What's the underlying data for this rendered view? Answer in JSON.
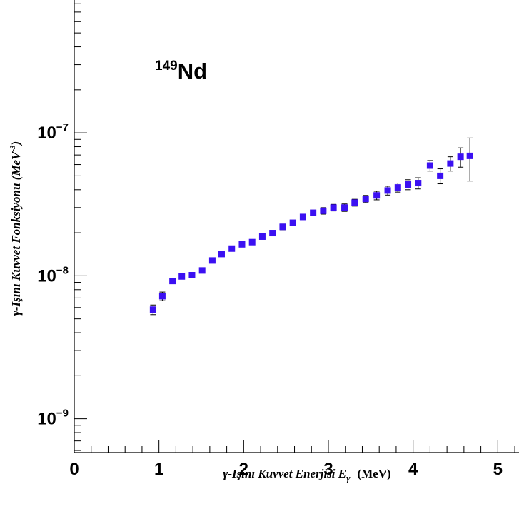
{
  "chart_data": {
    "type": "scatter",
    "xlabel_main": "γ-Işını Kuvvet Enerjisi E",
    "xlabel_sub": "γ",
    "xlabel_unit": "(MeV)",
    "ylabel": "γ-Işını Kuvvet Fonksiyonu (MeV",
    "ylabel_sup": "-3",
    "ylabel_close": ")",
    "annotation_mass": "149",
    "annotation_element": "Nd",
    "xlim": [
      0,
      5.25
    ],
    "ylim": [
      5.8e-10,
      8.5e-07
    ],
    "yscale": "log",
    "x_ticks": [
      "0",
      "1",
      "2",
      "3",
      "4",
      "5"
    ],
    "y_ticks": [
      {
        "value": 1e-09,
        "base": "10",
        "exp": "−9"
      },
      {
        "value": 1e-08,
        "base": "10",
        "exp": "−8"
      },
      {
        "value": 1e-07,
        "base": "10",
        "exp": "−7"
      }
    ],
    "marker_color": "#3b10f2",
    "points": [
      {
        "x": 0.93,
        "y": 5.8e-09,
        "err": 4.5e-10
      },
      {
        "x": 1.04,
        "y": 7.2e-09,
        "err": 5e-10
      },
      {
        "x": 1.16,
        "y": 9.2e-09,
        "err": 4e-10
      },
      {
        "x": 1.27,
        "y": 9.9e-09,
        "err": 3e-10
      },
      {
        "x": 1.39,
        "y": 1.01e-08,
        "err": 3e-10
      },
      {
        "x": 1.51,
        "y": 1.09e-08,
        "err": 3e-10
      },
      {
        "x": 1.63,
        "y": 1.28e-08,
        "err": 3e-10
      },
      {
        "x": 1.74,
        "y": 1.42e-08,
        "err": 3e-10
      },
      {
        "x": 1.86,
        "y": 1.55e-08,
        "err": 3e-10
      },
      {
        "x": 1.98,
        "y": 1.66e-08,
        "err": 3e-10
      },
      {
        "x": 2.1,
        "y": 1.72e-08,
        "err": 3e-10
      },
      {
        "x": 2.22,
        "y": 1.88e-08,
        "err": 4e-10
      },
      {
        "x": 2.34,
        "y": 1.99e-08,
        "err": 4e-10
      },
      {
        "x": 2.46,
        "y": 2.2e-08,
        "err": 1e-09
      },
      {
        "x": 2.58,
        "y": 2.35e-08,
        "err": 1e-09
      },
      {
        "x": 2.7,
        "y": 2.58e-08,
        "err": 1e-09
      },
      {
        "x": 2.82,
        "y": 2.76e-08,
        "err": 1.2e-09
      },
      {
        "x": 2.94,
        "y": 2.85e-08,
        "err": 1.5e-09
      },
      {
        "x": 3.06,
        "y": 3e-08,
        "err": 1.6e-09
      },
      {
        "x": 3.19,
        "y": 3e-08,
        "err": 1.8e-09
      },
      {
        "x": 3.31,
        "y": 3.25e-08,
        "err": 1.8e-09
      },
      {
        "x": 3.44,
        "y": 3.45e-08,
        "err": 2e-09
      },
      {
        "x": 3.57,
        "y": 3.65e-08,
        "err": 2.5e-09
      },
      {
        "x": 3.7,
        "y": 3.95e-08,
        "err": 2.8e-09
      },
      {
        "x": 3.82,
        "y": 4.15e-08,
        "err": 3e-09
      },
      {
        "x": 3.94,
        "y": 4.35e-08,
        "err": 3.5e-09
      },
      {
        "x": 4.06,
        "y": 4.45e-08,
        "err": 4e-09
      },
      {
        "x": 4.2,
        "y": 5.9e-08,
        "err": 5e-09
      },
      {
        "x": 4.32,
        "y": 5e-08,
        "err": 6e-09
      },
      {
        "x": 4.44,
        "y": 6.1e-08,
        "err": 7e-09
      },
      {
        "x": 4.56,
        "y": 6.8e-08,
        "err": 1.05e-08
      },
      {
        "x": 4.67,
        "y": 6.9e-08,
        "err": 2.3e-08
      }
    ]
  }
}
